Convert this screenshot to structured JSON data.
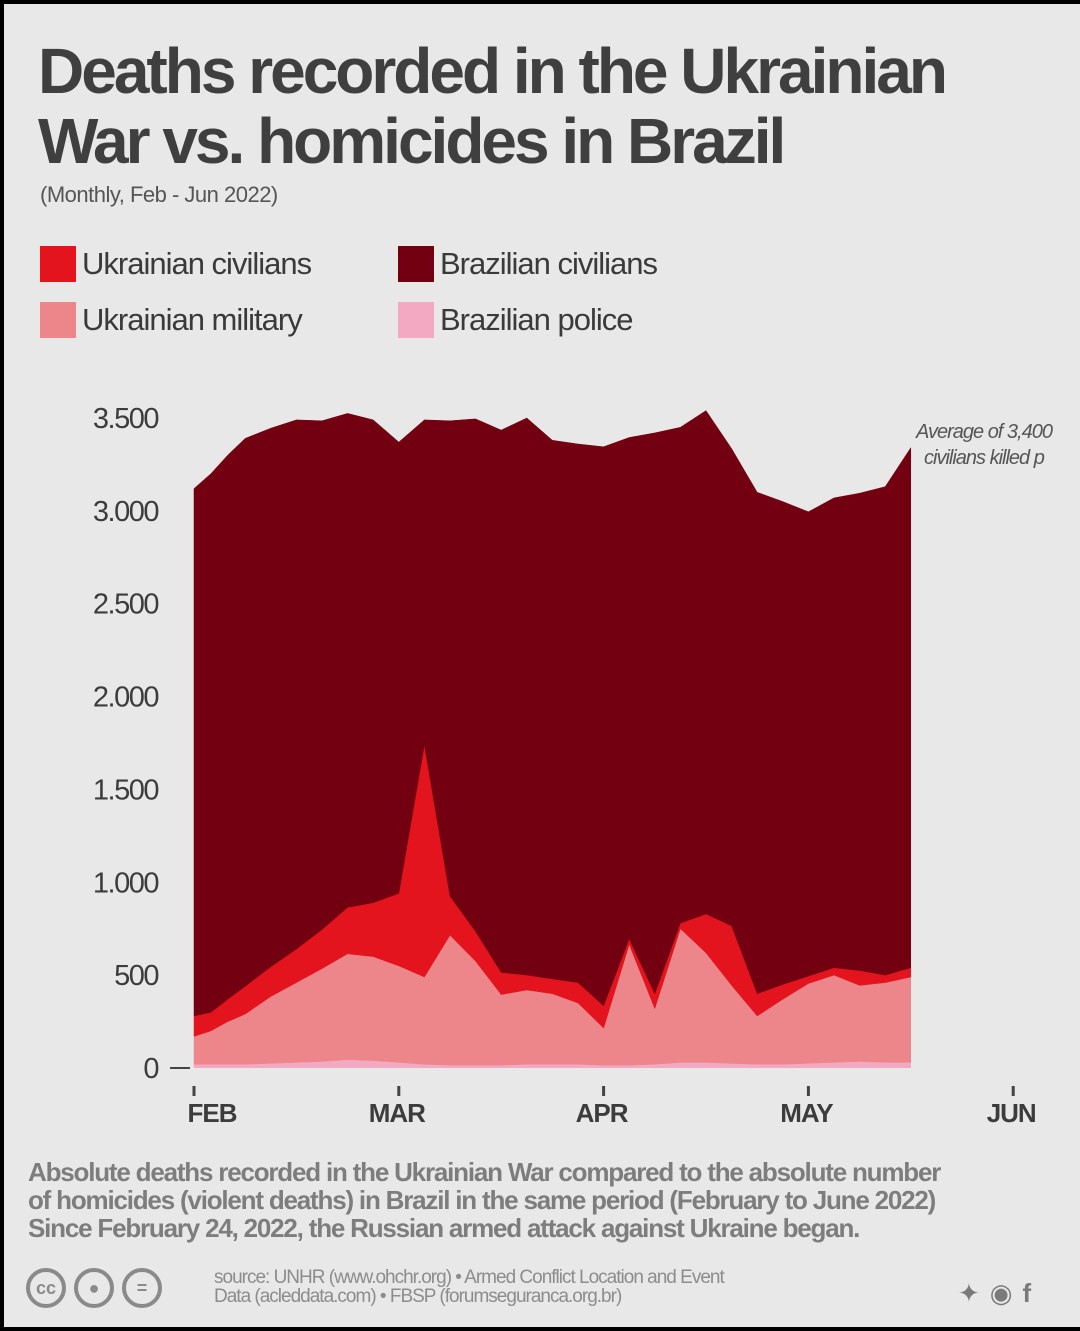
{
  "title_line1": "Deaths recorded in the Ukrainian",
  "title_line2": "War vs. homicides in Brazil",
  "subtitle": "(Monthly, Feb - Jun 2022)",
  "legend": [
    {
      "label": "Ukrainian civilians",
      "color": "#e3141d"
    },
    {
      "label": "Brazilian civilians",
      "color": "#720010"
    },
    {
      "label": "Ukrainian military",
      "color": "#ec868a"
    },
    {
      "label": "Brazilian police",
      "color": "#f4a9c3"
    }
  ],
  "chart_data": {
    "type": "area",
    "stacked": true,
    "x": [
      0,
      0.33,
      0.66,
      1,
      1.5,
      2,
      2.5,
      3,
      3.5,
      4,
      4.5,
      5,
      5.5,
      6,
      6.5,
      7,
      7.5,
      8,
      8.5,
      9,
      9.5,
      10,
      10.5,
      11,
      11.5,
      12,
      12.5,
      13,
      13.5,
      14
    ],
    "x_ticks": [
      {
        "at": 0,
        "label": "FEB"
      },
      {
        "at": 4,
        "label": "MAR"
      },
      {
        "at": 8,
        "label": "APR"
      },
      {
        "at": 12,
        "label": "MAY"
      },
      {
        "at": 16,
        "label": "JUN"
      }
    ],
    "series": [
      {
        "name": "Brazilian police",
        "color": "#f4a9c3",
        "values": [
          20,
          20,
          20,
          20,
          25,
          30,
          35,
          45,
          40,
          30,
          20,
          15,
          15,
          15,
          20,
          20,
          20,
          15,
          15,
          20,
          30,
          30,
          25,
          20,
          20,
          25,
          30,
          35,
          30,
          30
        ]
      },
      {
        "name": "Ukrainian military",
        "color": "#ec868a",
        "values": [
          150,
          180,
          230,
          270,
          360,
          430,
          500,
          570,
          560,
          520,
          470,
          700,
          560,
          380,
          400,
          380,
          330,
          200,
          650,
          300,
          720,
          590,
          420,
          260,
          350,
          430,
          470,
          410,
          430,
          460
        ]
      },
      {
        "name": "Ukrainian civilians",
        "color": "#e3141d",
        "values": [
          110,
          100,
          120,
          150,
          160,
          180,
          210,
          250,
          290,
          390,
          1250,
          210,
          160,
          120,
          80,
          80,
          110,
          120,
          30,
          80,
          30,
          210,
          320,
          120,
          80,
          40,
          40,
          80,
          40,
          50
        ]
      },
      {
        "name": "Brazilian civilians",
        "color": "#720010",
        "values": [
          2840,
          2900,
          2930,
          2950,
          2900,
          2850,
          2740,
          2660,
          2600,
          2430,
          1750,
          2560,
          2760,
          2920,
          3000,
          2900,
          2900,
          3010,
          2700,
          3020,
          2670,
          2710,
          2570,
          2700,
          2600,
          2500,
          2530,
          2570,
          2630,
          2800
        ]
      }
    ],
    "y_ticks": [
      {
        "value": 0,
        "label": "0"
      },
      {
        "value": 500,
        "label": "500"
      },
      {
        "value": 1000,
        "label": "1.000"
      },
      {
        "value": 1500,
        "label": "1.500"
      },
      {
        "value": 2000,
        "label": "2.000"
      },
      {
        "value": 2500,
        "label": "2.500"
      },
      {
        "value": 3000,
        "label": "3.000"
      },
      {
        "value": 3500,
        "label": "3.500"
      }
    ],
    "ylim": [
      0,
      3500
    ],
    "annotations": [
      {
        "line1": "Average of 3,400",
        "line2": "civilians killed p"
      }
    ],
    "grid": false
  },
  "caption": [
    "Absolute deaths recorded in the Ukrainian War compared to the absolute number",
    "of homicides (violent deaths) in Brazil in the same period (February to June 2022)",
    "Since February 24, 2022, the Russian armed attack against Ukraine began."
  ],
  "source": [
    "source: UNHR (www.ohchr.org) • Armed Conflict Location and Event",
    "Data (acleddata.com) • FBSP (forumseguranca.org.br)"
  ],
  "license_icons": [
    "cc-icon",
    "by-icon",
    "nd-icon"
  ],
  "social_icons": [
    "twitter-icon",
    "weibo-icon",
    "facebook-icon"
  ]
}
